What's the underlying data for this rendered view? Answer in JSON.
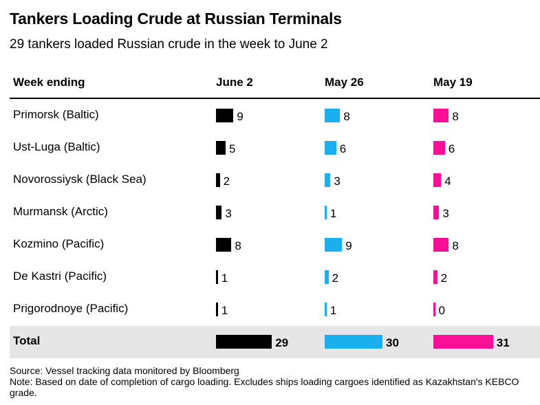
{
  "title": "Tankers Loading Crude at Russian Terminals",
  "subtitle": "29 tankers loaded Russian crude in the week to June 2",
  "header": {
    "row_label": "Week ending",
    "columns": [
      "June 2",
      "May 26",
      "May 19"
    ]
  },
  "colors": {
    "June 2": "#000000",
    "May 26": "#1ab0f0",
    "May 19": "#fa0f96"
  },
  "chart_data": {
    "type": "table",
    "categories": [
      "Primorsk (Baltic)",
      "Ust-Luga (Baltic)",
      "Novorossiysk (Black Sea)",
      "Murmansk (Arctic)",
      "Kozmino (Pacific)",
      "De Kastri (Pacific)",
      "Prigorodnoye (Pacific)"
    ],
    "series": [
      {
        "name": "June 2",
        "values": [
          9,
          5,
          2,
          3,
          8,
          1,
          1
        ]
      },
      {
        "name": "May 26",
        "values": [
          8,
          6,
          3,
          1,
          9,
          2,
          1
        ]
      },
      {
        "name": "May 19",
        "values": [
          8,
          6,
          4,
          3,
          8,
          2,
          0
        ]
      }
    ],
    "total": {
      "label": "Total",
      "values": [
        29,
        30,
        31
      ]
    }
  },
  "source": "Source: Vessel tracking data monitored by Bloomberg",
  "note": "Note: Based on date of completion of cargo loading. Excludes ships loading cargoes identified as Kazakhstan's KEBCO grade."
}
